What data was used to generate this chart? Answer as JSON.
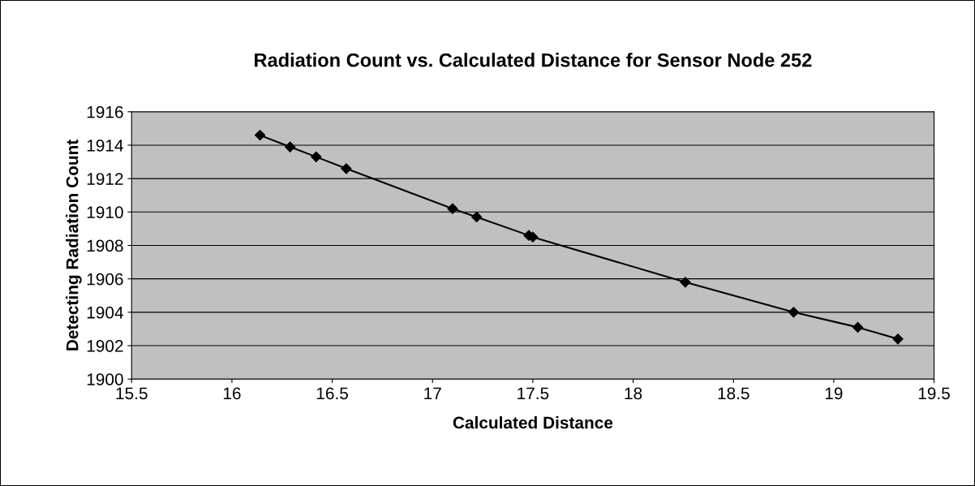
{
  "chart_data": {
    "type": "line",
    "title": "Radiation Count vs. Calculated Distance for Sensor Node 252",
    "xlabel": "Calculated Distance",
    "ylabel": "Detecting Radiation Count",
    "series": [
      {
        "color": "#000000",
        "x": [
          16.14,
          16.29,
          16.42,
          16.57,
          17.1,
          17.22,
          17.48,
          17.5,
          18.26,
          18.8,
          19.12,
          19.32
        ],
        "values": [
          1914.6,
          1913.9,
          1913.3,
          1912.6,
          1910.2,
          1909.7,
          1908.6,
          1908.5,
          1905.8,
          1904.0,
          1903.1,
          1902.4
        ]
      }
    ],
    "xlim": [
      15.5,
      19.5
    ],
    "xticks": [
      15.5,
      16,
      16.5,
      17,
      17.5,
      18,
      18.5,
      19,
      19.5
    ],
    "ylim": [
      1900,
      1916
    ],
    "yticks": [
      1900,
      1902,
      1904,
      1906,
      1908,
      1910,
      1912,
      1914,
      1916
    ],
    "grid": "y",
    "marker": "diamond",
    "line_style": "solid",
    "legend": false
  }
}
